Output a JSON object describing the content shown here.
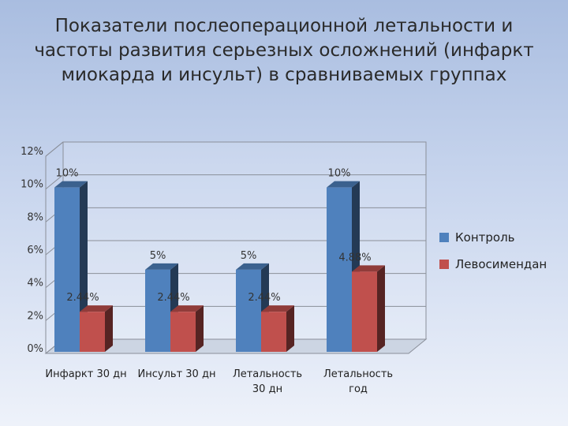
{
  "chart_data": {
    "type": "bar",
    "title": "Показатели послеоперационной летальности и частоты развития серьезных осложнений (инфаркт миокарда и инсульт) в сравниваемых группах",
    "categories": [
      [
        "Инфаркт 30 дн"
      ],
      [
        "Инсульт 30 дн"
      ],
      [
        "Летальность",
        "30 дн"
      ],
      [
        "Летальность",
        "год"
      ]
    ],
    "series": [
      {
        "name": "Контроль",
        "values": [
          10,
          5,
          5,
          10
        ],
        "labels": [
          "10%",
          "5%",
          "5%",
          "10%"
        ],
        "color": "#4f81bd"
      },
      {
        "name": "Левосимендан",
        "values": [
          2.44,
          2.44,
          2.44,
          4.88
        ],
        "labels": [
          "2.44%",
          "2.44%",
          "2.44%",
          "4.88%"
        ],
        "color": "#c0504d"
      }
    ],
    "ylim": [
      0,
      12
    ],
    "yticks": [
      "0%",
      "2%",
      "4%",
      "6%",
      "8%",
      "10%",
      "12%"
    ],
    "grid": true,
    "legend": "right",
    "style": "3d-clustered-bar"
  }
}
